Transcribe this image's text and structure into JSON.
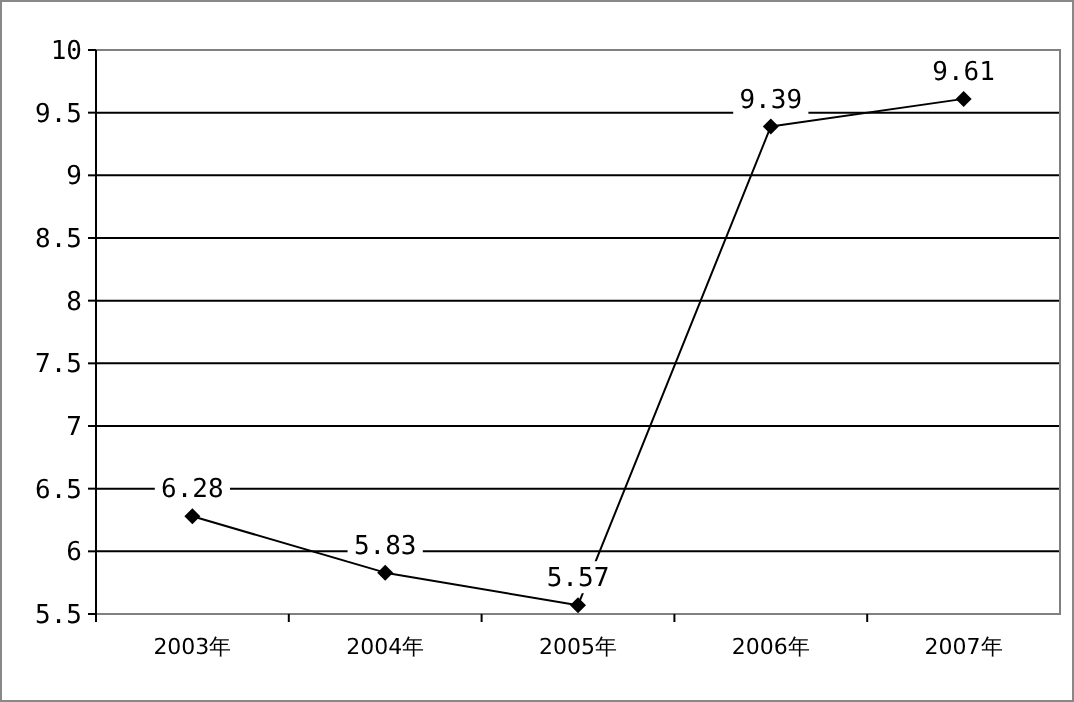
{
  "chart_data": {
    "type": "line",
    "categories": [
      "2003年",
      "2004年",
      "2005年",
      "2006年",
      "2007年"
    ],
    "series": [
      {
        "color": "#000000",
        "values": [
          6.28,
          5.83,
          5.57,
          9.39,
          9.61
        ]
      }
    ],
    "ylim": [
      5.5,
      10
    ],
    "yticks": [
      5.5,
      6,
      6.5,
      7,
      7.5,
      8,
      8.5,
      9,
      9.5,
      10
    ],
    "grid": "y",
    "marker": "diamond",
    "line_style": "solid",
    "data_labels": true
  }
}
